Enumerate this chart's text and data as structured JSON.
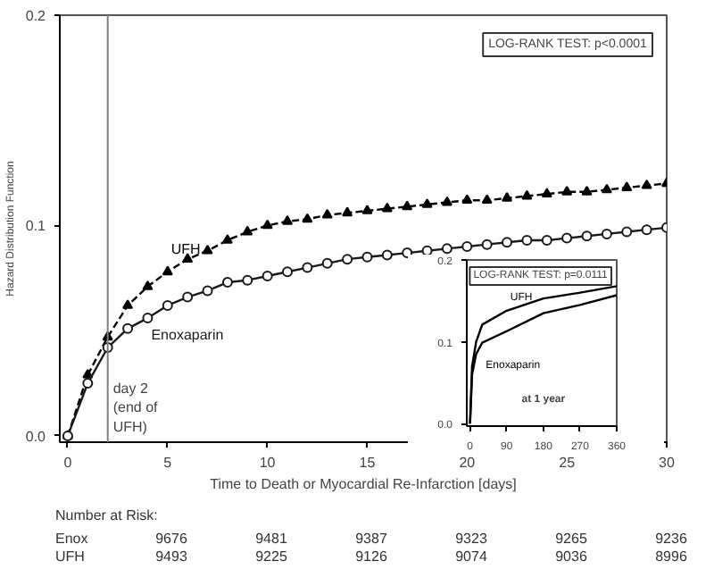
{
  "chart_data": [
    {
      "type": "line",
      "xlabel": "Time to Death or Myocardial Re-Infarction [days]",
      "ylabel": "Hazard Distribution Function",
      "x": [
        0,
        1,
        2,
        3,
        4,
        5,
        6,
        7,
        8,
        9,
        10,
        11,
        12,
        13,
        14,
        15,
        16,
        17,
        18,
        19,
        20,
        21,
        22,
        23,
        24,
        25,
        26,
        27,
        28,
        29,
        30
      ],
      "series": [
        {
          "name": "UFH",
          "color": "#000000",
          "marker": "triangle",
          "line_style": "dashed",
          "values": [
            0,
            0.029,
            0.047,
            0.062,
            0.071,
            0.078,
            0.084,
            0.088,
            0.093,
            0.097,
            0.1,
            0.102,
            0.103,
            0.105,
            0.106,
            0.107,
            0.108,
            0.109,
            0.11,
            0.111,
            0.112,
            0.112,
            0.113,
            0.114,
            0.115,
            0.116,
            0.116,
            0.117,
            0.118,
            0.119,
            0.12
          ]
        },
        {
          "name": "Enoxaparin",
          "color": "#1a1a1a",
          "marker": "circle",
          "line_style": "solid",
          "values": [
            0,
            0.025,
            0.042,
            0.051,
            0.056,
            0.062,
            0.066,
            0.069,
            0.073,
            0.074,
            0.076,
            0.078,
            0.08,
            0.082,
            0.084,
            0.085,
            0.086,
            0.087,
            0.088,
            0.089,
            0.09,
            0.091,
            0.092,
            0.093,
            0.093,
            0.094,
            0.095,
            0.096,
            0.097,
            0.098,
            0.099
          ]
        }
      ],
      "xlim": [
        -0.4,
        30
      ],
      "ylim": [
        -0.003,
        0.2
      ],
      "xticks": [
        0,
        5,
        10,
        15,
        20,
        25,
        30
      ],
      "yticks": [
        {
          "value": 0,
          "label": "0.0"
        },
        {
          "value": 0.1,
          "label": "0.1"
        },
        {
          "value": 0.2,
          "label": "0.2"
        }
      ],
      "ref_lines": [
        {
          "axis": "x",
          "value": 2,
          "label": "day 2\n(end of\nUFH)",
          "color": "#808080"
        }
      ],
      "grid": false,
      "legend": false,
      "annotations": [
        "LOG-RANK TEST: p<0.0001",
        "Number at Risk:",
        "Enox",
        "9676",
        "9481",
        "9387",
        "9323",
        "9265",
        "9236",
        "UFH",
        "9493",
        "9225",
        "9126",
        "9074",
        "9036",
        "8996"
      ]
    },
    {
      "type": "line",
      "x": [
        0,
        5,
        15,
        30,
        90,
        180,
        270,
        360
      ],
      "series": [
        {
          "name": "UFH",
          "color": "#000000",
          "values": [
            0,
            0.07,
            0.1,
            0.121,
            0.138,
            0.153,
            0.16,
            0.168
          ]
        },
        {
          "name": "Enoxaparin",
          "color": "#000000",
          "values": [
            0,
            0.06,
            0.085,
            0.099,
            0.113,
            0.135,
            0.145,
            0.157
          ]
        }
      ],
      "xlim": [
        -8,
        360
      ],
      "ylim": [
        -0.003,
        0.2
      ],
      "xticks": [
        0,
        90,
        180,
        270,
        360
      ],
      "yticks": [
        {
          "value": 0,
          "label": "0.0"
        },
        {
          "value": 0.1,
          "label": "0.1"
        },
        {
          "value": 0.2,
          "label": "0.2"
        }
      ],
      "grid": false,
      "legend": false,
      "annotations": [
        "LOG-RANK TEST: p=0.0111",
        "at 1 year"
      ]
    }
  ]
}
